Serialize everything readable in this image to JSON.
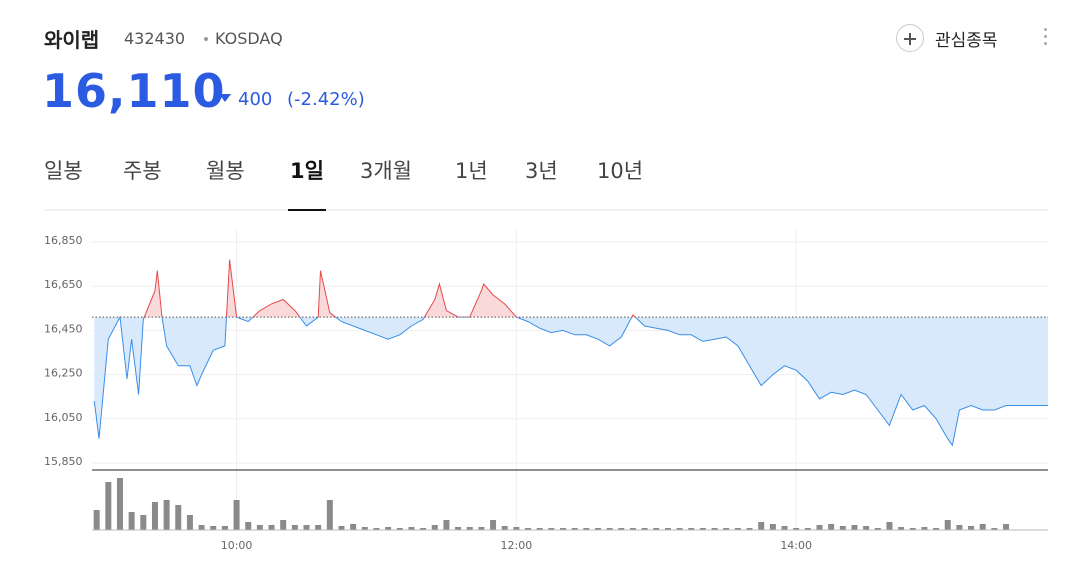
{
  "header": {
    "name": "와이랩",
    "code": "432430",
    "market": "KOSDAQ",
    "price": "16,110",
    "change": "400",
    "change_pct": "(-2.42%)",
    "watchlist": "관심종목"
  },
  "tabs": {
    "items": [
      "일봉",
      "주봉",
      "월봉",
      "1일",
      "3개월",
      "1년",
      "3년",
      "10년"
    ],
    "active": 3
  },
  "chart_data": [
    {
      "type": "line",
      "baseline": 16510,
      "up_color": "#e64a4a",
      "down_color": "#3a8ee6",
      "up_fill": "#f9d9d9",
      "down_fill": "#d8e9fb",
      "grid": true,
      "xlim": [
        538,
        948
      ],
      "ylim": [
        15850,
        16850
      ],
      "yticks": [
        {
          "value": 15850,
          "label": "15,850"
        },
        {
          "value": 16050,
          "label": "16,050"
        },
        {
          "value": 16250,
          "label": "16,250"
        },
        {
          "value": 16450,
          "label": "16,450"
        },
        {
          "value": 16650,
          "label": "16,650"
        },
        {
          "value": 16850,
          "label": "16,850"
        }
      ],
      "xticks": [
        {
          "value": 600,
          "label": "10:00"
        },
        {
          "value": 720,
          "label": "12:00"
        },
        {
          "value": 840,
          "label": "14:00"
        }
      ],
      "x": [
        539,
        541,
        545,
        550,
        553,
        555,
        558,
        560,
        565,
        566,
        568,
        570,
        575,
        580,
        583,
        585,
        590,
        595,
        597,
        600,
        605,
        610,
        615,
        620,
        625,
        630,
        635,
        636,
        640,
        645,
        650,
        655,
        660,
        665,
        670,
        675,
        680,
        685,
        687,
        690,
        695,
        700,
        705,
        706,
        710,
        715,
        720,
        725,
        730,
        735,
        740,
        745,
        750,
        755,
        760,
        765,
        770,
        775,
        780,
        785,
        790,
        795,
        800,
        805,
        810,
        815,
        820,
        825,
        830,
        835,
        840,
        845,
        850,
        855,
        860,
        865,
        870,
        875,
        880,
        885,
        890,
        895,
        900,
        905,
        907,
        910,
        915,
        920,
        925,
        930,
        948
      ],
      "values": [
        16130,
        15960,
        16410,
        16510,
        16230,
        16410,
        16160,
        16500,
        16630,
        16720,
        16510,
        16380,
        16290,
        16290,
        16200,
        16250,
        16360,
        16380,
        16770,
        16510,
        16490,
        16540,
        16570,
        16590,
        16540,
        16470,
        16510,
        16720,
        16530,
        16490,
        16470,
        16450,
        16430,
        16410,
        16430,
        16470,
        16500,
        16590,
        16660,
        16540,
        16510,
        16510,
        16630,
        16660,
        16610,
        16570,
        16510,
        16490,
        16460,
        16440,
        16450,
        16430,
        16430,
        16410,
        16380,
        16420,
        16520,
        16470,
        16460,
        16450,
        16430,
        16430,
        16400,
        16410,
        16420,
        16380,
        16290,
        16200,
        16250,
        16290,
        16270,
        16220,
        16140,
        16170,
        16160,
        16180,
        16160,
        16090,
        16020,
        16160,
        16090,
        16110,
        16050,
        15960,
        15930,
        16090,
        16110,
        16090,
        16090,
        16110,
        16110
      ]
    },
    {
      "type": "bar",
      "color": "#8a8a8a",
      "xlim": [
        538,
        948
      ],
      "ylim": [
        0,
        60
      ],
      "x": [
        540,
        545,
        550,
        555,
        560,
        565,
        570,
        575,
        580,
        585,
        590,
        595,
        600,
        605,
        610,
        615,
        620,
        625,
        630,
        635,
        640,
        645,
        650,
        655,
        660,
        665,
        670,
        675,
        680,
        685,
        690,
        695,
        700,
        705,
        710,
        715,
        720,
        725,
        730,
        735,
        740,
        745,
        750,
        755,
        760,
        765,
        770,
        775,
        780,
        785,
        790,
        795,
        800,
        805,
        810,
        815,
        820,
        825,
        830,
        835,
        840,
        845,
        850,
        855,
        860,
        865,
        870,
        875,
        880,
        885,
        890,
        895,
        900,
        905,
        910,
        915,
        920,
        925,
        930
      ],
      "values": [
        20,
        48,
        52,
        18,
        15,
        28,
        30,
        25,
        15,
        5,
        4,
        4,
        30,
        8,
        5,
        5,
        10,
        5,
        5,
        5,
        30,
        4,
        6,
        3,
        2,
        3,
        2,
        3,
        2,
        5,
        10,
        3,
        3,
        3,
        10,
        4,
        3,
        2,
        2,
        2,
        2,
        2,
        2,
        2,
        2,
        2,
        2,
        2,
        2,
        2,
        2,
        2,
        2,
        2,
        2,
        2,
        2,
        8,
        6,
        4,
        2,
        2,
        5,
        6,
        4,
        5,
        4,
        2,
        8,
        3,
        2,
        3,
        2,
        10,
        5,
        4,
        6,
        2,
        6
      ]
    }
  ]
}
